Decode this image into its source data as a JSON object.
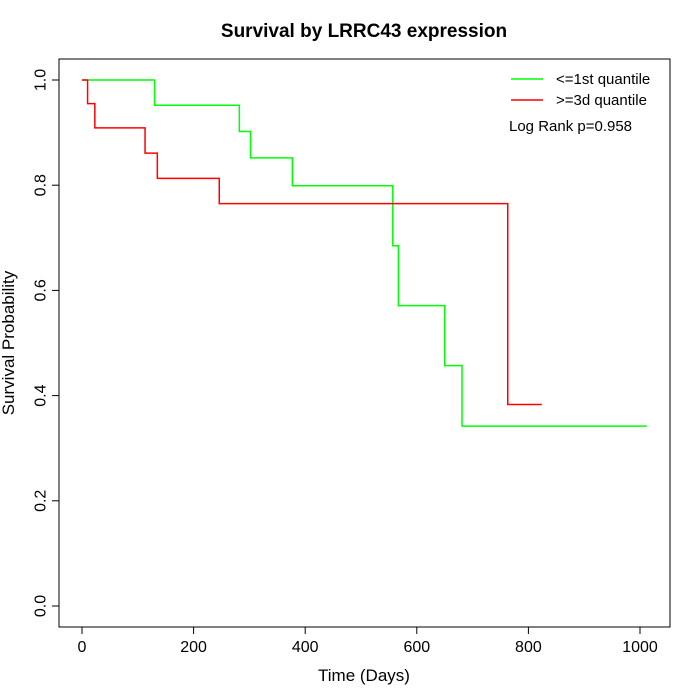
{
  "chart_data": {
    "type": "line",
    "step": true,
    "title": "Survival by LRRC43 expression",
    "xlabel": "Time (Days)",
    "ylabel": "Survival Probability",
    "xlim": [
      0,
      1000
    ],
    "ylim": [
      0,
      1
    ],
    "x_ticks": [
      0,
      200,
      400,
      600,
      800,
      1000
    ],
    "y_ticks": [
      0.0,
      0.2,
      0.4,
      0.6,
      0.8,
      1.0
    ],
    "x_tick_labels": [
      "0",
      "200",
      "400",
      "600",
      "800",
      "1000"
    ],
    "y_tick_labels": [
      "0.0",
      "0.2",
      "0.4",
      "0.6",
      "0.8",
      "1.0"
    ],
    "grid": false,
    "legend_position": "top-right",
    "annotation": "Log Rank p=0.958",
    "series": [
      {
        "name": "<=1st quantile",
        "color": "#00ff00",
        "x": [
          0,
          130,
          282,
          302,
          377,
          557,
          567,
          650,
          681,
          1012
        ],
        "y": [
          1.0,
          0.952,
          0.902,
          0.852,
          0.799,
          0.685,
          0.571,
          0.457,
          0.342,
          0.342
        ]
      },
      {
        "name": ">=3d quantile",
        "color": "#ff0000",
        "x": [
          0,
          10,
          23,
          113,
          135,
          246,
          763,
          824
        ],
        "y": [
          1.0,
          0.955,
          0.909,
          0.861,
          0.813,
          0.765,
          0.383,
          0.383
        ]
      }
    ]
  }
}
